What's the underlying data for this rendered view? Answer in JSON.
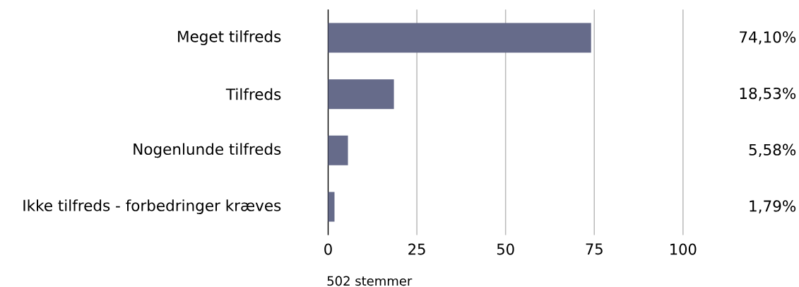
{
  "chart_data": {
    "type": "bar",
    "orientation": "horizontal",
    "categories": [
      "Meget tilfreds",
      "Tilfreds",
      "Nogenlunde tilfreds",
      "Ikke tilfreds - forbedringer kræves"
    ],
    "values": [
      74.1,
      18.53,
      5.58,
      1.79
    ],
    "value_labels": [
      "74,10%",
      "18,53%",
      "5,58%",
      "1,79%"
    ],
    "color": "#666b8a",
    "xlim": [
      0,
      100
    ],
    "xticks": [
      0,
      25,
      50,
      75,
      100
    ],
    "grid": "x",
    "annotations": [
      "502 stemmer"
    ]
  }
}
